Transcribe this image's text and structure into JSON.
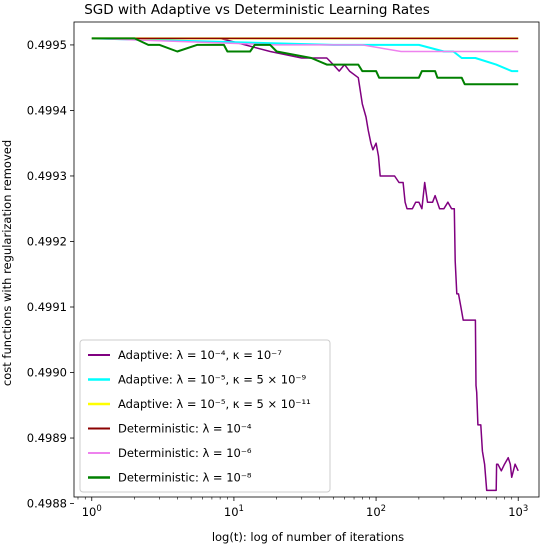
{
  "chart_data": {
    "type": "line",
    "title": "SGD with Adaptive vs Deterministic Learning Rates",
    "xlabel": "log(t): log of number of iterations",
    "ylabel": "cost functions with regularization removed",
    "xscale": "log",
    "xlim": [
      0.75,
      1400
    ],
    "ylim": [
      0.49881,
      0.499535
    ],
    "grid": false,
    "legend_placement": "lower-left",
    "x_ticks": [
      {
        "base": "10",
        "exp": "0",
        "value": 1
      },
      {
        "base": "10",
        "exp": "1",
        "value": 10
      },
      {
        "base": "10",
        "exp": "2",
        "value": 100
      },
      {
        "base": "10",
        "exp": "3",
        "value": 1000
      }
    ],
    "y_ticks": [
      {
        "label": "0.4988",
        "value": 0.4988
      },
      {
        "label": "0.4989",
        "value": 0.4989
      },
      {
        "label": "0.4990",
        "value": 0.499
      },
      {
        "label": "0.4991",
        "value": 0.4991
      },
      {
        "label": "0.4992",
        "value": 0.4992
      },
      {
        "label": "0.4993",
        "value": 0.4993
      },
      {
        "label": "0.4994",
        "value": 0.4994
      },
      {
        "label": "0.4995",
        "value": 0.4995
      }
    ],
    "series": [
      {
        "name": "Adaptive: λ = 10⁻⁴, κ = 10⁻⁷",
        "color": "#800080",
        "width": 1.5,
        "points": [
          [
            1,
            0.49951
          ],
          [
            2,
            0.49951
          ],
          [
            3,
            0.49951
          ],
          [
            8,
            0.49951
          ],
          [
            12,
            0.4995
          ],
          [
            18,
            0.49949
          ],
          [
            30,
            0.49948
          ],
          [
            45,
            0.49948
          ],
          [
            50,
            0.49947
          ],
          [
            55,
            0.49946
          ],
          [
            60,
            0.49947
          ],
          [
            65,
            0.49946
          ],
          [
            75,
            0.49945
          ],
          [
            80,
            0.49941
          ],
          [
            85,
            0.49939
          ],
          [
            88,
            0.49937
          ],
          [
            92,
            0.49935
          ],
          [
            95,
            0.49934
          ],
          [
            100,
            0.49935
          ],
          [
            104,
            0.49933
          ],
          [
            107,
            0.4993
          ],
          [
            110,
            0.4993
          ],
          [
            130,
            0.4993
          ],
          [
            135,
            0.4993
          ],
          [
            145,
            0.49929
          ],
          [
            155,
            0.49929
          ],
          [
            160,
            0.49926
          ],
          [
            165,
            0.49925
          ],
          [
            180,
            0.49925
          ],
          [
            190,
            0.49926
          ],
          [
            200,
            0.49926
          ],
          [
            210,
            0.49925
          ],
          [
            220,
            0.49929
          ],
          [
            230,
            0.49926
          ],
          [
            250,
            0.49926
          ],
          [
            260,
            0.49927
          ],
          [
            280,
            0.49925
          ],
          [
            300,
            0.49925
          ],
          [
            320,
            0.49926
          ],
          [
            340,
            0.49925
          ],
          [
            355,
            0.49925
          ],
          [
            360,
            0.49917
          ],
          [
            370,
            0.49912
          ],
          [
            380,
            0.49912
          ],
          [
            395,
            0.4991
          ],
          [
            410,
            0.49908
          ],
          [
            450,
            0.49908
          ],
          [
            480,
            0.49908
          ],
          [
            500,
            0.49908
          ],
          [
            505,
            0.49898
          ],
          [
            510,
            0.49897
          ],
          [
            520,
            0.49892
          ],
          [
            545,
            0.49892
          ],
          [
            560,
            0.49888
          ],
          [
            580,
            0.49886
          ],
          [
            600,
            0.49882
          ],
          [
            650,
            0.49882
          ],
          [
            700,
            0.49882
          ],
          [
            705,
            0.49886
          ],
          [
            720,
            0.49886
          ],
          [
            760,
            0.49885
          ],
          [
            800,
            0.49886
          ],
          [
            850,
            0.49887
          ],
          [
            880,
            0.49886
          ],
          [
            900,
            0.49884
          ],
          [
            950,
            0.49886
          ],
          [
            1000,
            0.49885
          ]
        ]
      },
      {
        "name": "Adaptive: λ = 10⁻⁵, κ = 5 × 10⁻⁹",
        "color": "#00ffff",
        "width": 2,
        "points": [
          [
            1,
            0.49951
          ],
          [
            50,
            0.4995
          ],
          [
            200,
            0.4995
          ],
          [
            300,
            0.49949
          ],
          [
            350,
            0.49949
          ],
          [
            400,
            0.49948
          ],
          [
            500,
            0.49948
          ],
          [
            700,
            0.49947
          ],
          [
            900,
            0.49946
          ],
          [
            1000,
            0.49946
          ]
        ]
      },
      {
        "name": "Adaptive: λ = 10⁻⁵, κ = 5 × 10⁻¹¹",
        "color": "#ffff00",
        "width": 2,
        "points": [
          [
            1,
            0.49951
          ],
          [
            1000,
            0.49951
          ]
        ]
      },
      {
        "name": "Deterministic: λ = 10⁻⁴",
        "color": "#8b0000",
        "width": 1.5,
        "points": [
          [
            1,
            0.49951
          ],
          [
            1000,
            0.49951
          ]
        ]
      },
      {
        "name": "Deterministic: λ = 10⁻⁶",
        "color": "#ee82ee",
        "width": 1.5,
        "points": [
          [
            1,
            0.49951
          ],
          [
            20,
            0.4995
          ],
          [
            80,
            0.4995
          ],
          [
            150,
            0.49949
          ],
          [
            200,
            0.49949
          ],
          [
            1000,
            0.49949
          ]
        ]
      },
      {
        "name": "Deterministic: λ = 10⁻⁸",
        "color": "#008000",
        "width": 2,
        "points": [
          [
            1,
            0.49951
          ],
          [
            2,
            0.49951
          ],
          [
            2.5,
            0.4995
          ],
          [
            3,
            0.4995
          ],
          [
            4,
            0.49949
          ],
          [
            5.5,
            0.4995
          ],
          [
            8.5,
            0.4995
          ],
          [
            9,
            0.49949
          ],
          [
            13,
            0.49949
          ],
          [
            14,
            0.4995
          ],
          [
            18,
            0.4995
          ],
          [
            20,
            0.49949
          ],
          [
            35,
            0.49948
          ],
          [
            45,
            0.49947
          ],
          [
            60,
            0.49947
          ],
          [
            75,
            0.49947
          ],
          [
            80,
            0.49946
          ],
          [
            100,
            0.49946
          ],
          [
            105,
            0.49945
          ],
          [
            200,
            0.49945
          ],
          [
            210,
            0.49946
          ],
          [
            260,
            0.49946
          ],
          [
            270,
            0.49945
          ],
          [
            400,
            0.49945
          ],
          [
            420,
            0.49944
          ],
          [
            600,
            0.49944
          ],
          [
            1000,
            0.49944
          ]
        ]
      }
    ]
  }
}
